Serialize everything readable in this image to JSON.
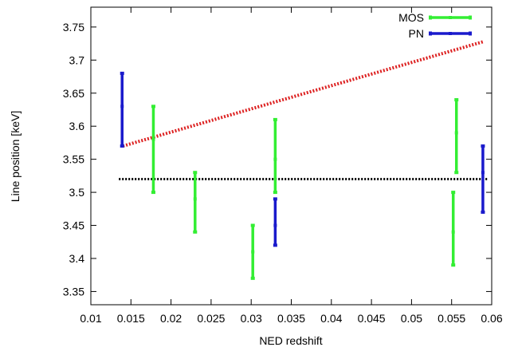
{
  "chart_data": {
    "type": "scatter",
    "xlabel": "NED redshift",
    "ylabel": "Line position [keV]",
    "xlim": [
      0.01,
      0.06
    ],
    "ylim": [
      3.33,
      3.78
    ],
    "xticks": [
      "0.01",
      "0.015",
      "0.02",
      "0.025",
      "0.03",
      "0.035",
      "0.04",
      "0.045",
      "0.05",
      "0.055",
      "0.06"
    ],
    "yticks": [
      "3.35",
      "3.4",
      "3.45",
      "3.5",
      "3.55",
      "3.6",
      "3.65",
      "3.7",
      "3.75"
    ],
    "legend_position": "top-right",
    "series": [
      {
        "name": "MOS",
        "color": "#33ee33",
        "points": [
          {
            "x": 0.0178,
            "y": 3.58,
            "ylow": 3.5,
            "yhigh": 3.63
          },
          {
            "x": 0.023,
            "y": 3.49,
            "ylow": 3.44,
            "yhigh": 3.53
          },
          {
            "x": 0.0302,
            "y": 3.41,
            "ylow": 3.37,
            "yhigh": 3.45
          },
          {
            "x": 0.033,
            "y": 3.55,
            "ylow": 3.5,
            "yhigh": 3.61
          },
          {
            "x": 0.0552,
            "y": 3.44,
            "ylow": 3.39,
            "yhigh": 3.5
          },
          {
            "x": 0.0556,
            "y": 3.59,
            "ylow": 3.53,
            "yhigh": 3.64
          }
        ]
      },
      {
        "name": "PN",
        "color": "#1a1acc",
        "points": [
          {
            "x": 0.0139,
            "y": 3.63,
            "ylow": 3.57,
            "yhigh": 3.68
          },
          {
            "x": 0.033,
            "y": 3.45,
            "ylow": 3.42,
            "yhigh": 3.49
          },
          {
            "x": 0.0589,
            "y": 3.53,
            "ylow": 3.47,
            "yhigh": 3.57
          }
        ]
      }
    ],
    "reference_lines": [
      {
        "style": "dotted",
        "color": "#dd2222",
        "points": [
          [
            0.014,
            3.57
          ],
          [
            0.059,
            3.728
          ]
        ]
      },
      {
        "style": "dotted",
        "color": "#000000",
        "points": [
          [
            0.0135,
            3.52
          ],
          [
            0.0595,
            3.52
          ]
        ]
      }
    ]
  }
}
